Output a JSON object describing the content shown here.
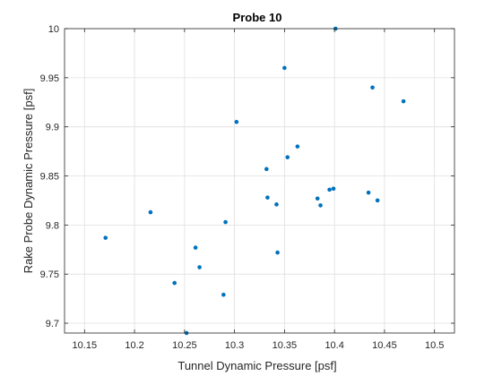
{
  "colors": {
    "marker": "#0072BD",
    "grid": "#DFDFDF",
    "axis": "#262626",
    "background": "#FFFFFF"
  },
  "chart_data": {
    "type": "scatter",
    "title": "Probe 10",
    "xlabel": "Tunnel Dynamic Pressure [psf]",
    "ylabel": "Rake Probe Dynamic Pressure [psf]",
    "xlim": [
      10.13,
      10.52
    ],
    "ylim": [
      9.69,
      10.0
    ],
    "xticks": [
      10.15,
      10.2,
      10.25,
      10.3,
      10.35,
      10.4,
      10.45,
      10.5
    ],
    "xtick_labels": [
      "10.15",
      "10.2",
      "10.25",
      "10.3",
      "10.35",
      "10.4",
      "10.45",
      "10.5"
    ],
    "yticks": [
      9.7,
      9.75,
      9.8,
      9.85,
      9.9,
      9.95,
      10.0
    ],
    "ytick_labels": [
      "9.7",
      "9.75",
      "9.8",
      "9.85",
      "9.9",
      "9.95",
      "10"
    ],
    "grid": true,
    "box": true,
    "series": [
      {
        "marker": "filled-dot",
        "points": [
          {
            "x": 10.171,
            "y": 9.787
          },
          {
            "x": 10.216,
            "y": 9.813
          },
          {
            "x": 10.24,
            "y": 9.741
          },
          {
            "x": 10.252,
            "y": 9.69
          },
          {
            "x": 10.261,
            "y": 9.777
          },
          {
            "x": 10.265,
            "y": 9.757
          },
          {
            "x": 10.289,
            "y": 9.729
          },
          {
            "x": 10.291,
            "y": 9.803
          },
          {
            "x": 10.302,
            "y": 9.905
          },
          {
            "x": 10.332,
            "y": 9.857
          },
          {
            "x": 10.333,
            "y": 9.828
          },
          {
            "x": 10.342,
            "y": 9.821
          },
          {
            "x": 10.343,
            "y": 9.772
          },
          {
            "x": 10.35,
            "y": 9.96
          },
          {
            "x": 10.353,
            "y": 9.869
          },
          {
            "x": 10.363,
            "y": 9.88
          },
          {
            "x": 10.383,
            "y": 9.827
          },
          {
            "x": 10.386,
            "y": 9.82
          },
          {
            "x": 10.395,
            "y": 9.836
          },
          {
            "x": 10.399,
            "y": 9.837
          },
          {
            "x": 10.401,
            "y": 10.0
          },
          {
            "x": 10.434,
            "y": 9.833
          },
          {
            "x": 10.438,
            "y": 9.94
          },
          {
            "x": 10.443,
            "y": 9.825
          },
          {
            "x": 10.469,
            "y": 9.926
          }
        ]
      }
    ]
  }
}
